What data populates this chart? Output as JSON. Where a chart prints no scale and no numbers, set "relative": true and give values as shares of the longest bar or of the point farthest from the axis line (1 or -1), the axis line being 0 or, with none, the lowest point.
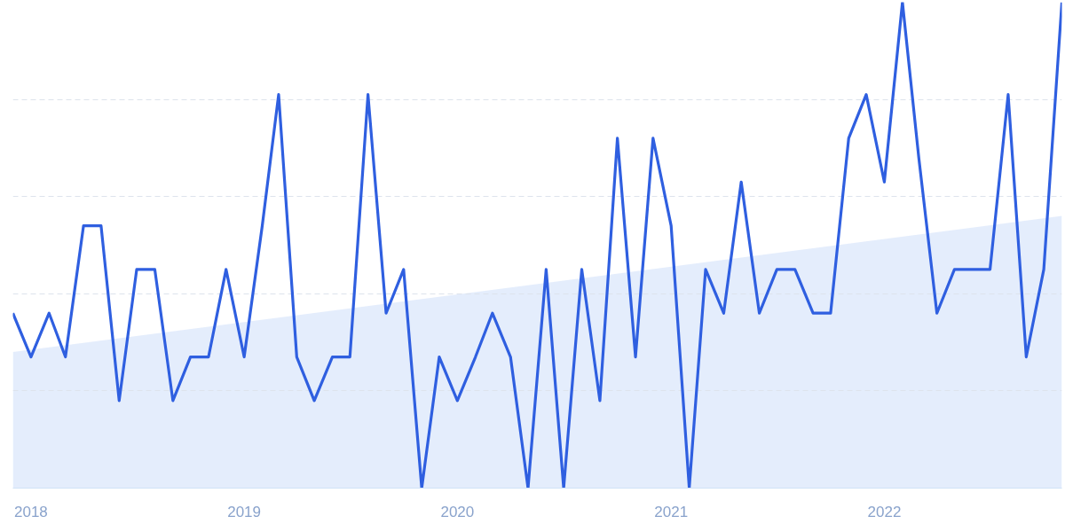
{
  "chart_data": {
    "type": "line",
    "relative": true,
    "grid": "y",
    "marker": "none",
    "line_style": "solid",
    "x": [
      "2017-12",
      "2018-01",
      "2018-02",
      "2018-03",
      "2018-04",
      "2018-05",
      "2018-06",
      "2018-07",
      "2018-08",
      "2018-09",
      "2018-10",
      "2018-11",
      "2018-12",
      "2019-01",
      "2019-02",
      "2019-03",
      "2019-04",
      "2019-05",
      "2019-06",
      "2019-07",
      "2019-08",
      "2019-09",
      "2019-10",
      "2019-11",
      "2019-12",
      "2020-01",
      "2020-02",
      "2020-03",
      "2020-04",
      "2020-05",
      "2020-06",
      "2020-07",
      "2020-08",
      "2020-09",
      "2020-10",
      "2020-11",
      "2020-12",
      "2021-01",
      "2021-02",
      "2021-03",
      "2021-04",
      "2021-05",
      "2021-06",
      "2021-07",
      "2021-08",
      "2021-09",
      "2021-10",
      "2021-11",
      "2021-12",
      "2022-01",
      "2022-02",
      "2022-03",
      "2022-04",
      "2022-05",
      "2022-06",
      "2022-07",
      "2022-08",
      "2022-09",
      "2022-10",
      "2022-11"
    ],
    "xlim": [
      "2017-12",
      "2022-11"
    ],
    "xticks": [
      "2018",
      "2019",
      "2020",
      "2021",
      "2022"
    ],
    "series": [
      {
        "color": "#2f5fe0",
        "values": [
          0.36,
          0.27,
          0.36,
          0.27,
          0.54,
          0.54,
          0.18,
          0.45,
          0.45,
          0.18,
          0.27,
          0.27,
          0.45,
          0.27,
          0.54,
          0.81,
          0.27,
          0.18,
          0.27,
          0.27,
          0.81,
          0.36,
          0.45,
          0,
          0.27,
          0.18,
          0.27,
          0.36,
          0.27,
          0,
          0.45,
          0,
          0.45,
          0.18,
          0.72,
          0.27,
          0.72,
          0.54,
          0,
          0.45,
          0.36,
          0.63,
          0.36,
          0.45,
          0.45,
          0.36,
          0.36,
          0.72,
          0.81,
          0.63,
          1,
          0.68,
          0.36,
          0.45,
          0.45,
          0.45,
          0.81,
          0.27,
          0.45,
          1
        ]
      },
      {
        "type": "area",
        "color": "#dde9fb",
        "x": [
          "2017-12",
          "2022-11"
        ],
        "values": [
          0.28,
          0.56
        ]
      }
    ]
  }
}
